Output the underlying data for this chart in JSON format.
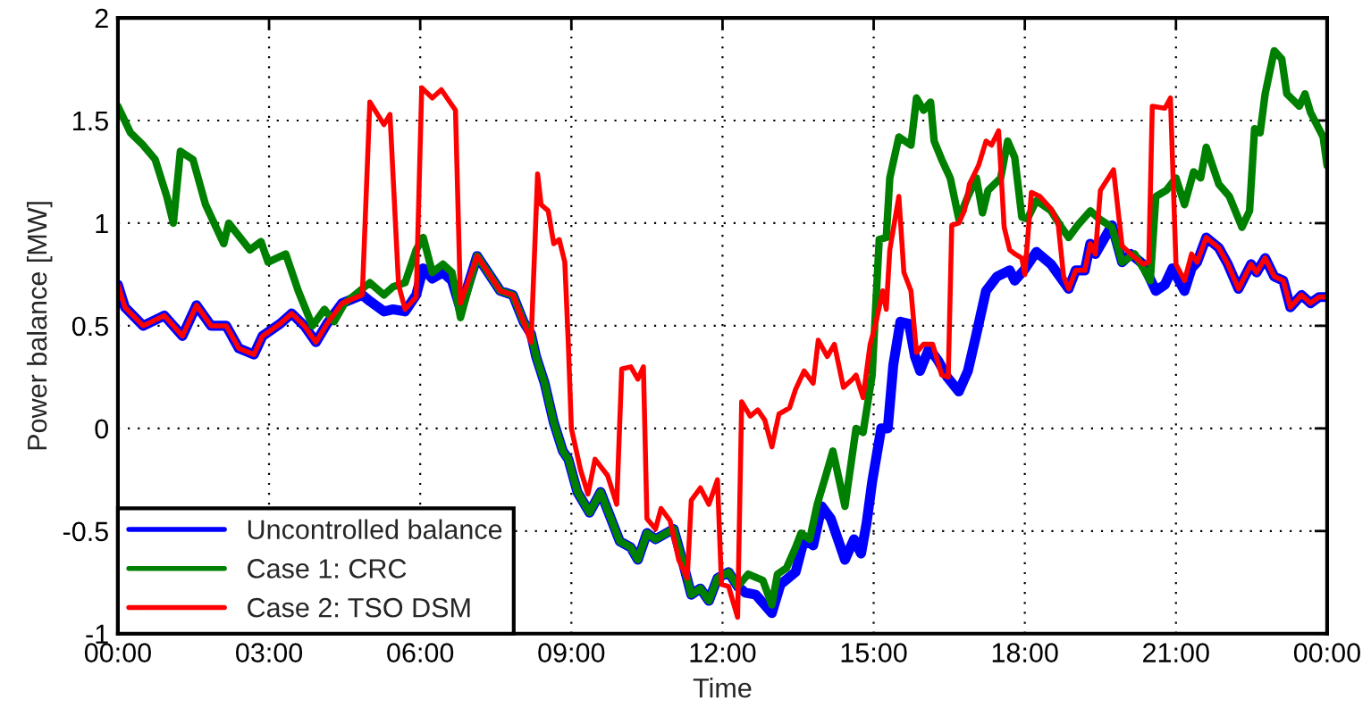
{
  "chart_data": {
    "type": "line",
    "xlabel": "Time",
    "ylabel": "Power balance [MW]",
    "xlim": [
      0,
      24
    ],
    "ylim": [
      -1,
      2
    ],
    "xticks": [
      {
        "value": 0,
        "label": "00:00"
      },
      {
        "value": 3,
        "label": "03:00"
      },
      {
        "value": 6,
        "label": "06:00"
      },
      {
        "value": 9,
        "label": "09:00"
      },
      {
        "value": 12,
        "label": "12:00"
      },
      {
        "value": 15,
        "label": "15:00"
      },
      {
        "value": 18,
        "label": "18:00"
      },
      {
        "value": 21,
        "label": "21:00"
      },
      {
        "value": 24,
        "label": "00:00"
      }
    ],
    "yticks": [
      -1,
      -0.5,
      0,
      0.5,
      1,
      1.5,
      2
    ],
    "grid": true,
    "legend": "bottom left",
    "line_style": "solid",
    "marker": "none",
    "series": [
      {
        "name": "Uncontrolled balance",
        "color": "#0000ff",
        "x": [
          0,
          0.14,
          0.5,
          0.92,
          1.28,
          1.56,
          1.85,
          2.15,
          2.4,
          2.7,
          2.87,
          3.22,
          3.45,
          3.7,
          3.93,
          4.15,
          4.45,
          4.85,
          5.0,
          5.28,
          5.46,
          5.7,
          5.92,
          6.06,
          6.24,
          6.45,
          6.63,
          6.8,
          7.13,
          7.59,
          7.84,
          8.05,
          8.2,
          8.3,
          8.47,
          8.65,
          8.83,
          8.94,
          9.12,
          9.36,
          9.58,
          9.96,
          10.18,
          10.32,
          10.5,
          10.67,
          11.03,
          11.2,
          11.38,
          11.56,
          11.73,
          11.9,
          12.12,
          12.3,
          12.45,
          12.66,
          12.98,
          13.15,
          13.45,
          13.62,
          13.8,
          13.97,
          14.15,
          14.43,
          14.61,
          14.75,
          14.86,
          14.97,
          15.15,
          15.28,
          15.39,
          15.53,
          15.7,
          15.82,
          15.92,
          16.1,
          16.28,
          16.46,
          16.69,
          16.87,
          17.04,
          17.23,
          17.45,
          17.7,
          17.8,
          17.98,
          18.23,
          18.52,
          18.87,
          19.01,
          19.19,
          19.3,
          19.4,
          19.73,
          19.93,
          20.1,
          20.35,
          20.6,
          20.78,
          20.93,
          21.17,
          21.31,
          21.42,
          21.6,
          21.85,
          22.03,
          22.24,
          22.49,
          22.6,
          22.77,
          22.95,
          23.13,
          23.27,
          23.49,
          23.67,
          23.84,
          24
        ],
        "values": [
          0.7,
          0.59,
          0.5,
          0.55,
          0.45,
          0.6,
          0.5,
          0.5,
          0.39,
          0.36,
          0.45,
          0.51,
          0.56,
          0.5,
          0.42,
          0.51,
          0.61,
          0.65,
          0.62,
          0.57,
          0.58,
          0.57,
          0.65,
          0.78,
          0.73,
          0.76,
          0.72,
          0.58,
          0.84,
          0.67,
          0.65,
          0.52,
          0.46,
          0.35,
          0.22,
          0.03,
          -0.11,
          -0.15,
          -0.31,
          -0.41,
          -0.31,
          -0.55,
          -0.58,
          -0.64,
          -0.51,
          -0.54,
          -0.49,
          -0.64,
          -0.81,
          -0.78,
          -0.84,
          -0.73,
          -0.7,
          -0.77,
          -0.8,
          -0.81,
          -0.9,
          -0.76,
          -0.7,
          -0.54,
          -0.57,
          -0.38,
          -0.44,
          -0.64,
          -0.54,
          -0.61,
          -0.46,
          -0.26,
          0.0,
          0.0,
          0.31,
          0.52,
          0.51,
          0.35,
          0.28,
          0.39,
          0.33,
          0.25,
          0.18,
          0.28,
          0.46,
          0.67,
          0.74,
          0.77,
          0.72,
          0.77,
          0.86,
          0.8,
          0.68,
          0.77,
          0.77,
          0.9,
          0.85,
          0.99,
          0.81,
          0.85,
          0.8,
          0.67,
          0.7,
          0.78,
          0.67,
          0.78,
          0.81,
          0.93,
          0.88,
          0.8,
          0.68,
          0.8,
          0.76,
          0.83,
          0.74,
          0.72,
          0.59,
          0.65,
          0.61,
          0.64,
          0.64
        ]
      },
      {
        "name": "Case 1: CRC",
        "color": "#008000",
        "x": [
          0,
          0.25,
          0.5,
          0.74,
          0.97,
          1.1,
          1.24,
          1.49,
          1.74,
          2.1,
          2.2,
          2.62,
          2.84,
          2.98,
          3.33,
          3.58,
          3.86,
          4.1,
          4.29,
          4.5,
          5.0,
          5.28,
          5.46,
          5.7,
          5.92,
          6.06,
          6.24,
          6.45,
          6.63,
          6.8,
          7.13,
          7.59,
          7.84,
          8.05,
          8.2,
          8.3,
          8.47,
          8.65,
          8.83,
          8.94,
          9.12,
          9.36,
          9.58,
          9.96,
          10.18,
          10.32,
          10.5,
          10.67,
          11.03,
          11.2,
          11.38,
          11.56,
          11.73,
          11.9,
          12.12,
          12.3,
          12.51,
          12.8,
          12.98,
          13.09,
          13.27,
          13.45,
          13.56,
          13.73,
          13.88,
          14.05,
          14.19,
          14.43,
          14.65,
          14.79,
          14.97,
          15.11,
          15.25,
          15.32,
          15.5,
          15.74,
          15.85,
          15.99,
          16.13,
          16.2,
          16.35,
          16.52,
          16.69,
          16.87,
          17.04,
          17.16,
          17.27,
          17.52,
          17.66,
          17.8,
          17.94,
          18.05,
          18.23,
          18.52,
          18.7,
          18.87,
          19.05,
          19.3,
          19.48,
          19.73,
          19.93,
          20.18,
          20.35,
          20.49,
          20.6,
          20.81,
          21.0,
          21.17,
          21.35,
          21.49,
          21.6,
          21.85,
          22.06,
          22.31,
          22.46,
          22.56,
          22.67,
          22.77,
          22.95,
          23.1,
          23.2,
          23.45,
          23.56,
          23.67,
          23.92,
          24
        ],
        "values": [
          1.57,
          1.44,
          1.38,
          1.31,
          1.13,
          1.0,
          1.35,
          1.31,
          1.09,
          0.9,
          1.0,
          0.87,
          0.91,
          0.81,
          0.85,
          0.67,
          0.5,
          0.58,
          0.52,
          0.61,
          0.71,
          0.65,
          0.69,
          0.71,
          0.87,
          0.93,
          0.76,
          0.8,
          0.76,
          0.54,
          0.84,
          0.67,
          0.65,
          0.52,
          0.46,
          0.35,
          0.22,
          0.03,
          -0.11,
          -0.15,
          -0.31,
          -0.41,
          -0.31,
          -0.55,
          -0.58,
          -0.64,
          -0.51,
          -0.54,
          -0.49,
          -0.64,
          -0.81,
          -0.78,
          -0.84,
          -0.73,
          -0.7,
          -0.77,
          -0.71,
          -0.74,
          -0.86,
          -0.71,
          -0.68,
          -0.58,
          -0.51,
          -0.54,
          -0.37,
          -0.23,
          -0.11,
          -0.38,
          0.0,
          -0.02,
          0.26,
          0.92,
          0.93,
          1.22,
          1.42,
          1.38,
          1.61,
          1.55,
          1.59,
          1.4,
          1.31,
          1.22,
          1.02,
          1.13,
          1.22,
          1.05,
          1.16,
          1.22,
          1.4,
          1.32,
          1.03,
          1.02,
          1.11,
          1.06,
          0.99,
          0.93,
          0.99,
          1.06,
          1.02,
          0.98,
          0.81,
          0.85,
          0.78,
          0.72,
          1.13,
          1.16,
          1.22,
          1.09,
          1.25,
          1.22,
          1.37,
          1.19,
          1.13,
          0.98,
          1.06,
          1.46,
          1.44,
          1.63,
          1.84,
          1.8,
          1.63,
          1.57,
          1.63,
          1.54,
          1.42,
          1.28
        ]
      },
      {
        "name": "Case 2: TSO DSM",
        "color": "#ff0000",
        "x": [
          0,
          0.14,
          0.5,
          0.92,
          1.28,
          1.56,
          1.85,
          2.15,
          2.4,
          2.7,
          2.87,
          3.22,
          3.45,
          3.7,
          3.93,
          4.15,
          4.45,
          4.85,
          5.0,
          5.28,
          5.4,
          5.57,
          5.7,
          5.92,
          6.03,
          6.24,
          6.42,
          6.7,
          6.8,
          7.13,
          7.59,
          7.84,
          8.05,
          8.2,
          8.33,
          8.4,
          8.54,
          8.65,
          8.76,
          8.87,
          8.94,
          9.0,
          9.18,
          9.33,
          9.47,
          9.72,
          9.9,
          10.0,
          10.18,
          10.32,
          10.43,
          10.5,
          10.67,
          10.78,
          10.96,
          11.13,
          11.3,
          11.38,
          11.56,
          11.73,
          11.9,
          11.98,
          12.12,
          12.3,
          12.38,
          12.55,
          12.7,
          12.84,
          12.98,
          13.12,
          13.33,
          13.45,
          13.62,
          13.8,
          13.9,
          14.08,
          14.22,
          14.4,
          14.58,
          14.65,
          14.79,
          14.93,
          15.04,
          15.18,
          15.25,
          15.32,
          15.5,
          15.6,
          15.74,
          15.85,
          15.99,
          16.17,
          16.35,
          16.48,
          16.55,
          16.69,
          16.8,
          16.9,
          17.08,
          17.23,
          17.34,
          17.48,
          17.59,
          17.7,
          17.8,
          17.94,
          18.0,
          18.13,
          18.3,
          18.52,
          18.66,
          18.77,
          18.87,
          19.01,
          19.19,
          19.3,
          19.4,
          19.5,
          19.76,
          19.93,
          20.1,
          20.35,
          20.46,
          20.53,
          20.78,
          20.89,
          21.0,
          21.17,
          21.31,
          21.42,
          21.6,
          21.85,
          22.03,
          22.24,
          22.49,
          22.6,
          22.77,
          22.95,
          23.13,
          23.27,
          23.49,
          23.67,
          23.84,
          24
        ],
        "values": [
          0.7,
          0.59,
          0.5,
          0.55,
          0.45,
          0.6,
          0.5,
          0.5,
          0.39,
          0.36,
          0.45,
          0.51,
          0.56,
          0.5,
          0.42,
          0.51,
          0.61,
          0.65,
          1.59,
          1.48,
          1.53,
          0.7,
          0.58,
          0.64,
          1.66,
          1.61,
          1.65,
          1.55,
          0.61,
          0.84,
          0.67,
          0.65,
          0.52,
          0.42,
          1.24,
          1.09,
          1.06,
          0.9,
          0.92,
          0.81,
          0.41,
          0.0,
          -0.2,
          -0.32,
          -0.15,
          -0.23,
          -0.37,
          0.29,
          0.3,
          0.24,
          0.3,
          -0.44,
          -0.49,
          -0.39,
          -0.45,
          -0.64,
          -0.73,
          -0.35,
          -0.29,
          -0.37,
          -0.25,
          -0.76,
          -0.77,
          -0.92,
          0.13,
          0.06,
          0.09,
          0.04,
          -0.09,
          0.07,
          0.1,
          0.19,
          0.28,
          0.22,
          0.43,
          0.35,
          0.41,
          0.2,
          0.24,
          0.26,
          0.15,
          0.41,
          0.51,
          0.67,
          0.58,
          0.87,
          1.13,
          0.76,
          0.67,
          0.37,
          0.41,
          0.41,
          0.26,
          0.25,
          0.99,
          1.0,
          1.06,
          1.19,
          1.28,
          1.4,
          1.38,
          1.45,
          0.98,
          0.87,
          0.85,
          0.83,
          0.75,
          1.15,
          1.13,
          1.07,
          1.0,
          0.74,
          0.68,
          0.77,
          0.77,
          0.9,
          0.85,
          1.16,
          1.26,
          0.89,
          0.85,
          0.8,
          0.81,
          1.57,
          1.56,
          1.61,
          0.8,
          0.72,
          0.85,
          0.81,
          0.93,
          0.88,
          0.8,
          0.68,
          0.8,
          0.76,
          0.83,
          0.74,
          0.72,
          0.59,
          0.65,
          0.61,
          0.64,
          0.64
        ]
      }
    ]
  }
}
